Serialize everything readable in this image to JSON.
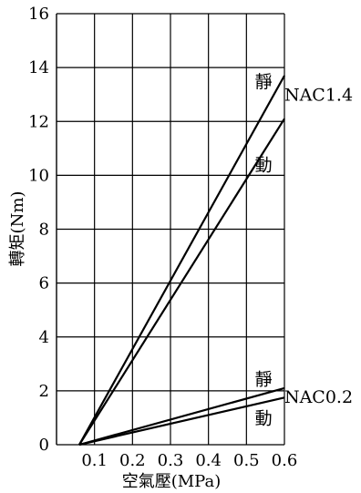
{
  "chart_data": {
    "type": "line",
    "title": "",
    "xlabel": "空氣壓(MPa)",
    "ylabel": "轉矩(Nm)",
    "xlim": [
      0,
      0.6
    ],
    "ylim": [
      0,
      16
    ],
    "x_ticks": [
      0.1,
      0.2,
      0.3,
      0.4,
      0.5,
      0.6
    ],
    "x_tick_labels": [
      "0.1",
      "0.2",
      "0.3",
      "0.4",
      "0.5",
      "0.6"
    ],
    "y_ticks": [
      0,
      2,
      4,
      6,
      8,
      10,
      12,
      14,
      16
    ],
    "y_tick_labels": [
      "0",
      "2",
      "4",
      "6",
      "8",
      "10",
      "12",
      "14",
      "16"
    ],
    "grid": true,
    "line_color": "#000000",
    "series": [
      {
        "x": [
          0.06,
          0.6
        ],
        "values": [
          0,
          13.7
        ]
      },
      {
        "x": [
          0.06,
          0.6
        ],
        "values": [
          0,
          12.1
        ]
      },
      {
        "x": [
          0.06,
          0.6
        ],
        "values": [
          0,
          2.1
        ]
      },
      {
        "x": [
          0.06,
          0.6
        ],
        "values": [
          0,
          1.75
        ]
      }
    ],
    "annotations": [
      {
        "text": "靜",
        "x": 0.545,
        "y": 13.5
      },
      {
        "text": "NAC1.4",
        "x": 0.69,
        "y": 13.0
      },
      {
        "text": "動",
        "x": 0.545,
        "y": 10.4
      },
      {
        "text": "靜",
        "x": 0.545,
        "y": 2.45
      },
      {
        "text": "NAC0.2",
        "x": 0.69,
        "y": 1.8
      },
      {
        "text": "動",
        "x": 0.545,
        "y": 1.0
      }
    ]
  }
}
